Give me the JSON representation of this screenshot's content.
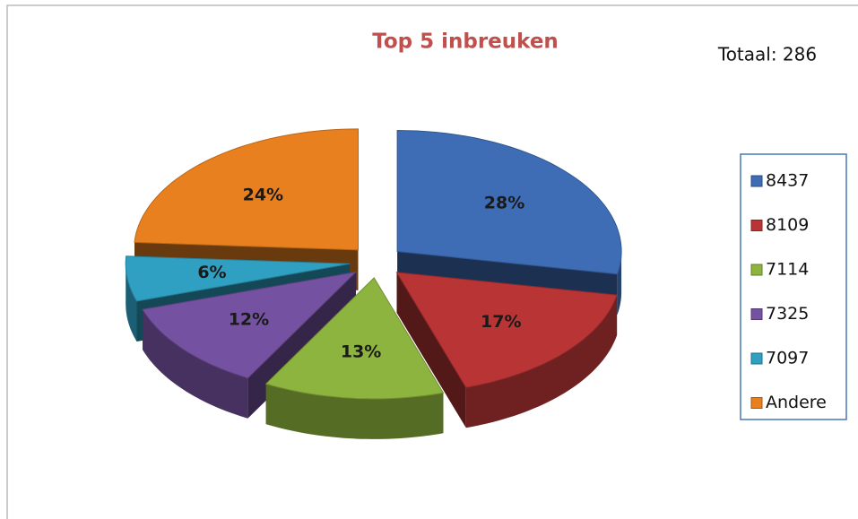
{
  "chart_data": {
    "type": "pie",
    "title": "Top 5 inbreuken",
    "annotation": "Totaal: 286",
    "categories": [
      "8437",
      "8109",
      "7114",
      "7325",
      "7097",
      "Andere"
    ],
    "values": [
      28,
      17,
      13,
      12,
      6,
      24
    ],
    "value_labels": [
      "28%",
      "17%",
      "13%",
      "12%",
      "6%",
      "24%"
    ],
    "colors": [
      "#3e6db5",
      "#b93535",
      "#8db43e",
      "#7552a1",
      "#2f9fc2",
      "#e8801f"
    ],
    "legend": "right"
  }
}
